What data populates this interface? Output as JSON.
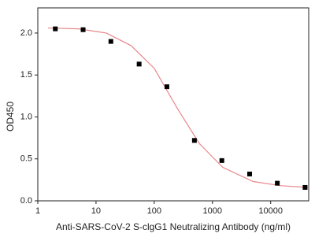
{
  "chart_data": {
    "type": "scatter",
    "x_label": "Anti-SARS-CoV-2 S-clgG1 Neutralizing Antibody (ng/ml)",
    "y_label": "OD450",
    "x": [
      2,
      6,
      18,
      55,
      165,
      490,
      1450,
      4350,
      13000,
      39000
    ],
    "series": [
      {
        "color": "#000000",
        "values": [
          2.05,
          2.04,
          1.9,
          1.63,
          1.36,
          0.72,
          0.48,
          0.32,
          0.21,
          0.16
        ]
      }
    ],
    "fit": {
      "color": "#e8888c",
      "x": [
        1.5,
        5,
        15,
        40,
        100,
        250,
        600,
        1500,
        5000,
        15000,
        45000
      ],
      "values": [
        2.06,
        2.05,
        2.0,
        1.85,
        1.58,
        1.1,
        0.68,
        0.4,
        0.23,
        0.18,
        0.16
      ]
    },
    "x_log": true,
    "xlim": [
      1,
      45000
    ],
    "xticks": [
      1,
      10,
      100,
      1000,
      10000
    ],
    "ylim": [
      0,
      2.3
    ],
    "yticks": [
      {
        "value": 0,
        "label": "0.0"
      },
      0.5,
      {
        "value": 1,
        "label": "1.0"
      },
      1.5,
      {
        "value": 2,
        "label": "2.0"
      }
    ]
  }
}
